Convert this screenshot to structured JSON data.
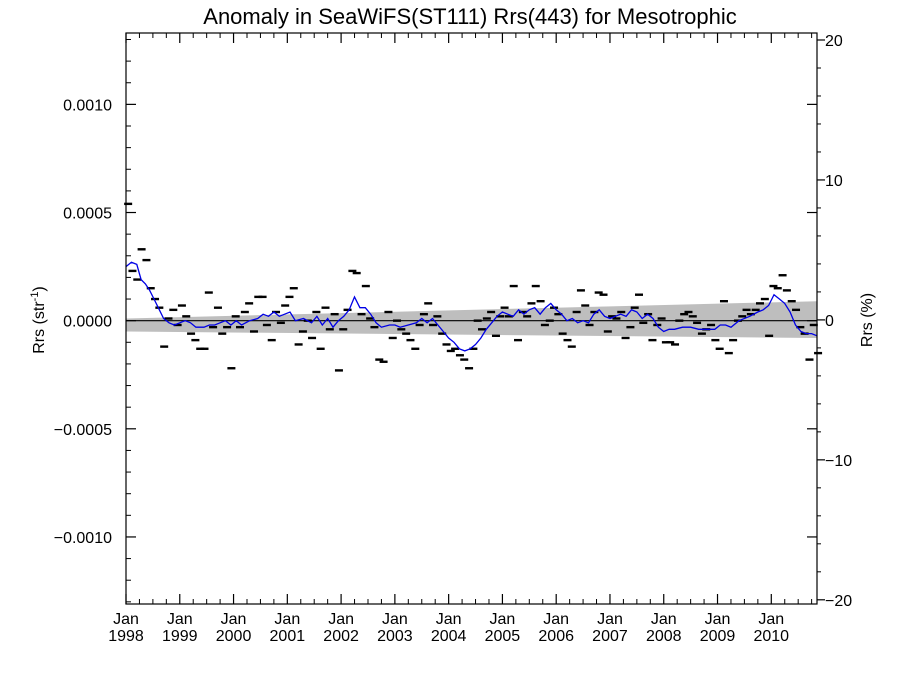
{
  "chart_data": {
    "type": "scatter",
    "title": "Anomaly in SeaWiFS(ST111) Rrs(443) for Mesotrophic",
    "ylabel_left": "Rrs (str",
    "ylabel_left_sup": "-1",
    "ylabel_left_end": ")",
    "ylabel_right": "Rrs (%)",
    "xlim": [
      1998.0,
      2010.85
    ],
    "ylim_left": [
      -0.00131,
      0.00133
    ],
    "ylim_right": [
      -20.3,
      20.5
    ],
    "y_ticks_left": [
      {
        "value": 0.001,
        "label": "0.0010"
      },
      {
        "value": 0.0005,
        "label": "0.0005"
      },
      {
        "value": 0.0,
        "label": "0.0000"
      },
      {
        "value": -0.0005,
        "label": "−0.0005"
      },
      {
        "value": -0.001,
        "label": "−0.0010"
      }
    ],
    "y_ticks_right": [
      {
        "value": 20,
        "label": "20"
      },
      {
        "value": 10,
        "label": "10"
      },
      {
        "value": 0,
        "label": "0"
      },
      {
        "value": -10,
        "label": "−10"
      },
      {
        "value": -20,
        "label": "−20"
      }
    ],
    "x_ticks": [
      {
        "value": 1998,
        "month": "Jan",
        "year": "1998"
      },
      {
        "value": 1999,
        "month": "Jan",
        "year": "1999"
      },
      {
        "value": 2000,
        "month": "Jan",
        "year": "2000"
      },
      {
        "value": 2001,
        "month": "Jan",
        "year": "2001"
      },
      {
        "value": 2002,
        "month": "Jan",
        "year": "2002"
      },
      {
        "value": 2003,
        "month": "Jan",
        "year": "2003"
      },
      {
        "value": 2004,
        "month": "Jan",
        "year": "2004"
      },
      {
        "value": 2005,
        "month": "Jan",
        "year": "2005"
      },
      {
        "value": 2006,
        "month": "Jan",
        "year": "2006"
      },
      {
        "value": 2007,
        "month": "Jan",
        "year": "2007"
      },
      {
        "value": 2008,
        "month": "Jan",
        "year": "2008"
      },
      {
        "value": 2009,
        "month": "Jan",
        "year": "2009"
      },
      {
        "value": 2010,
        "month": "Jan",
        "year": "2010"
      }
    ],
    "trend_band": {
      "x": [
        1998.0,
        2010.85
      ],
      "upper": [
        1e-05,
        9e-05
      ],
      "lower": [
        -5e-05,
        -8e-05
      ],
      "color": "#bebebe"
    },
    "zero_line": {
      "y": 0.0,
      "color": "#000000"
    },
    "monthly_anomalies": {
      "color": "#000000",
      "points": [
        [
          1998.04,
          0.00054
        ],
        [
          1998.12,
          0.00023
        ],
        [
          1998.21,
          0.00019
        ],
        [
          1998.29,
          0.00033
        ],
        [
          1998.38,
          0.00028
        ],
        [
          1998.46,
          0.00015
        ],
        [
          1998.54,
          0.0001
        ],
        [
          1998.62,
          6e-05
        ],
        [
          1998.71,
          -0.00012
        ],
        [
          1998.79,
          1e-05
        ],
        [
          1998.88,
          5e-05
        ],
        [
          1998.96,
          -2e-05
        ],
        [
          1999.04,
          7e-05
        ],
        [
          1999.12,
          2e-05
        ],
        [
          1999.21,
          -6e-05
        ],
        [
          1999.29,
          -9e-05
        ],
        [
          1999.38,
          -0.00013
        ],
        [
          1999.46,
          -0.00013
        ],
        [
          1999.54,
          0.00013
        ],
        [
          1999.62,
          -3e-05
        ],
        [
          1999.71,
          6e-05
        ],
        [
          1999.79,
          -6e-05
        ],
        [
          1999.88,
          -3e-05
        ],
        [
          1999.96,
          -0.00022
        ],
        [
          2000.04,
          2e-05
        ],
        [
          2000.12,
          -3e-05
        ],
        [
          2000.21,
          4e-05
        ],
        [
          2000.29,
          8e-05
        ],
        [
          2000.38,
          -5e-05
        ],
        [
          2000.46,
          0.00011
        ],
        [
          2000.54,
          0.00011
        ],
        [
          2000.62,
          -2e-05
        ],
        [
          2000.71,
          -9e-05
        ],
        [
          2000.79,
          4e-05
        ],
        [
          2000.88,
          -1e-05
        ],
        [
          2000.96,
          7e-05
        ],
        [
          2001.04,
          0.00011
        ],
        [
          2001.12,
          0.00015
        ],
        [
          2001.21,
          -0.00011
        ],
        [
          2001.29,
          -5e-05
        ],
        [
          2001.38,
          0.0
        ],
        [
          2001.46,
          -8e-05
        ],
        [
          2001.54,
          4e-05
        ],
        [
          2001.62,
          -0.00013
        ],
        [
          2001.71,
          6e-05
        ],
        [
          2001.79,
          -4e-05
        ],
        [
          2001.88,
          3e-05
        ],
        [
          2001.96,
          -0.00023
        ],
        [
          2002.04,
          -4e-05
        ],
        [
          2002.12,
          5e-05
        ],
        [
          2002.21,
          0.00023
        ],
        [
          2002.29,
          0.00022
        ],
        [
          2002.38,
          3e-05
        ],
        [
          2002.46,
          0.00016
        ],
        [
          2002.54,
          1e-05
        ],
        [
          2002.62,
          -3e-05
        ],
        [
          2002.71,
          -0.00018
        ],
        [
          2002.79,
          -0.00019
        ],
        [
          2002.88,
          4e-05
        ],
        [
          2002.96,
          -8e-05
        ],
        [
          2003.04,
          0.0
        ],
        [
          2003.12,
          -4e-05
        ],
        [
          2003.21,
          -6e-05
        ],
        [
          2003.29,
          -9e-05
        ],
        [
          2003.38,
          -0.00013
        ],
        [
          2003.46,
          -2e-05
        ],
        [
          2003.54,
          3e-05
        ],
        [
          2003.62,
          8e-05
        ],
        [
          2003.71,
          -2e-05
        ],
        [
          2003.79,
          2e-05
        ],
        [
          2003.88,
          -6e-05
        ],
        [
          2003.96,
          -0.00011
        ],
        [
          2004.04,
          -0.00014
        ],
        [
          2004.12,
          -0.00013
        ],
        [
          2004.21,
          -0.00016
        ],
        [
          2004.29,
          -0.00018
        ],
        [
          2004.38,
          -0.00022
        ],
        [
          2004.46,
          -0.00013
        ],
        [
          2004.54,
          0.0
        ],
        [
          2004.62,
          -4e-05
        ],
        [
          2004.71,
          1e-05
        ],
        [
          2004.79,
          4e-05
        ],
        [
          2004.88,
          -7e-05
        ],
        [
          2004.96,
          2e-05
        ],
        [
          2005.04,
          6e-05
        ],
        [
          2005.12,
          2e-05
        ],
        [
          2005.21,
          0.00016
        ],
        [
          2005.29,
          -9e-05
        ],
        [
          2005.38,
          4e-05
        ],
        [
          2005.46,
          2e-05
        ],
        [
          2005.54,
          8e-05
        ],
        [
          2005.62,
          0.00016
        ],
        [
          2005.71,
          9e-05
        ],
        [
          2005.79,
          -2e-05
        ],
        [
          2005.88,
          0.0
        ],
        [
          2005.96,
          6e-05
        ],
        [
          2006.04,
          3e-05
        ],
        [
          2006.12,
          -6e-05
        ],
        [
          2006.21,
          -9e-05
        ],
        [
          2006.29,
          -0.00012
        ],
        [
          2006.38,
          4e-05
        ],
        [
          2006.46,
          0.00014
        ],
        [
          2006.54,
          7e-05
        ],
        [
          2006.62,
          -2e-05
        ],
        [
          2006.71,
          4e-05
        ],
        [
          2006.79,
          0.00013
        ],
        [
          2006.88,
          0.00012
        ],
        [
          2006.96,
          -5e-05
        ],
        [
          2007.04,
          2e-05
        ],
        [
          2007.12,
          1e-05
        ],
        [
          2007.21,
          4e-05
        ],
        [
          2007.29,
          -8e-05
        ],
        [
          2007.38,
          -3e-05
        ],
        [
          2007.46,
          6e-05
        ],
        [
          2007.54,
          0.00012
        ],
        [
          2007.62,
          -1e-05
        ],
        [
          2007.71,
          3e-05
        ],
        [
          2007.79,
          -9e-05
        ],
        [
          2007.88,
          -2e-05
        ],
        [
          2007.96,
          1e-05
        ],
        [
          2008.04,
          -0.0001
        ],
        [
          2008.12,
          -0.0001
        ],
        [
          2008.21,
          -0.00011
        ],
        [
          2008.29,
          0.0
        ],
        [
          2008.38,
          3e-05
        ],
        [
          2008.46,
          4e-05
        ],
        [
          2008.54,
          2e-05
        ],
        [
          2008.62,
          -1e-05
        ],
        [
          2008.71,
          -6e-05
        ],
        [
          2008.79,
          -4e-05
        ],
        [
          2008.88,
          -2e-05
        ],
        [
          2008.96,
          -9e-05
        ],
        [
          2009.04,
          -0.00013
        ],
        [
          2009.12,
          9e-05
        ],
        [
          2009.21,
          -0.00015
        ],
        [
          2009.29,
          -9e-05
        ],
        [
          2009.38,
          0.0
        ],
        [
          2009.46,
          2e-05
        ],
        [
          2009.54,
          5e-05
        ],
        [
          2009.62,
          3e-05
        ],
        [
          2009.71,
          5e-05
        ],
        [
          2009.79,
          8e-05
        ],
        [
          2009.88,
          0.0001
        ],
        [
          2009.96,
          -7e-05
        ],
        [
          2010.04,
          0.00016
        ],
        [
          2010.12,
          0.00015
        ],
        [
          2010.21,
          0.00021
        ],
        [
          2010.29,
          0.00014
        ],
        [
          2010.38,
          9e-05
        ],
        [
          2010.46,
          5e-05
        ],
        [
          2010.54,
          -3e-05
        ],
        [
          2010.62,
          -6e-05
        ],
        [
          2010.71,
          -0.00018
        ],
        [
          2010.79,
          -2e-05
        ],
        [
          2010.87,
          -0.00015
        ]
      ]
    },
    "running_mean": {
      "color": "#0000e6",
      "points": [
        [
          1998.0,
          0.00025
        ],
        [
          1998.1,
          0.00027
        ],
        [
          1998.2,
          0.00026
        ],
        [
          1998.28,
          0.00019
        ],
        [
          1998.36,
          0.00017
        ],
        [
          1998.44,
          0.00014
        ],
        [
          1998.52,
          0.0001
        ],
        [
          1998.6,
          6e-05
        ],
        [
          1998.7,
          1e-05
        ],
        [
          1998.8,
          -1e-05
        ],
        [
          1998.9,
          -2e-05
        ],
        [
          1999.0,
          -1e-05
        ],
        [
          1999.1,
          0.0
        ],
        [
          1999.2,
          -1e-05
        ],
        [
          1999.3,
          -3e-05
        ],
        [
          1999.45,
          -3e-05
        ],
        [
          1999.55,
          -2e-05
        ],
        [
          1999.65,
          -2e-05
        ],
        [
          1999.75,
          -1e-05
        ],
        [
          1999.85,
          0.0
        ],
        [
          1999.95,
          -2e-05
        ],
        [
          2000.05,
          0.0
        ],
        [
          2000.15,
          -2e-05
        ],
        [
          2000.3,
          0.0
        ],
        [
          2000.45,
          1e-05
        ],
        [
          2000.55,
          3e-05
        ],
        [
          2000.65,
          2e-05
        ],
        [
          2000.75,
          4e-05
        ],
        [
          2000.85,
          2e-05
        ],
        [
          2000.95,
          3e-05
        ],
        [
          2001.05,
          4e-05
        ],
        [
          2001.15,
          0.0
        ],
        [
          2001.3,
          1e-05
        ],
        [
          2001.45,
          -1e-05
        ],
        [
          2001.55,
          2e-05
        ],
        [
          2001.65,
          -2e-05
        ],
        [
          2001.75,
          1e-05
        ],
        [
          2001.85,
          -3e-05
        ],
        [
          2001.95,
          0.0
        ],
        [
          2002.05,
          2e-05
        ],
        [
          2002.15,
          5e-05
        ],
        [
          2002.25,
          0.00011
        ],
        [
          2002.35,
          6e-05
        ],
        [
          2002.45,
          6e-05
        ],
        [
          2002.55,
          3e-05
        ],
        [
          2002.65,
          -1e-05
        ],
        [
          2002.75,
          -3e-05
        ],
        [
          2002.9,
          -2e-05
        ],
        [
          2003.0,
          -2e-05
        ],
        [
          2003.1,
          -3e-05
        ],
        [
          2003.25,
          -2e-05
        ],
        [
          2003.4,
          -1e-05
        ],
        [
          2003.5,
          1e-05
        ],
        [
          2003.6,
          -1e-05
        ],
        [
          2003.7,
          1e-05
        ],
        [
          2003.8,
          -2e-05
        ],
        [
          2003.9,
          -5e-05
        ],
        [
          2004.0,
          -8e-05
        ],
        [
          2004.1,
          -0.0001
        ],
        [
          2004.2,
          -0.00013
        ],
        [
          2004.3,
          -0.00014
        ],
        [
          2004.4,
          -0.00013
        ],
        [
          2004.5,
          -0.00011
        ],
        [
          2004.6,
          -8e-05
        ],
        [
          2004.7,
          -4e-05
        ],
        [
          2004.8,
          -1e-05
        ],
        [
          2004.9,
          2e-05
        ],
        [
          2005.0,
          4e-05
        ],
        [
          2005.1,
          3e-05
        ],
        [
          2005.2,
          2e-05
        ],
        [
          2005.3,
          5e-05
        ],
        [
          2005.4,
          3e-05
        ],
        [
          2005.5,
          5e-05
        ],
        [
          2005.6,
          6e-05
        ],
        [
          2005.7,
          3e-05
        ],
        [
          2005.8,
          6e-05
        ],
        [
          2005.9,
          8e-05
        ],
        [
          2006.0,
          5e-05
        ],
        [
          2006.1,
          3e-05
        ],
        [
          2006.2,
          0.0
        ],
        [
          2006.3,
          1e-05
        ],
        [
          2006.4,
          -1e-05
        ],
        [
          2006.5,
          0.0
        ],
        [
          2006.6,
          -1e-05
        ],
        [
          2006.7,
          3e-05
        ],
        [
          2006.8,
          5e-05
        ],
        [
          2006.9,
          2e-05
        ],
        [
          2007.0,
          1e-05
        ],
        [
          2007.1,
          2e-05
        ],
        [
          2007.2,
          3e-05
        ],
        [
          2007.3,
          2e-05
        ],
        [
          2007.4,
          5e-05
        ],
        [
          2007.5,
          4e-05
        ],
        [
          2007.6,
          1e-05
        ],
        [
          2007.7,
          3e-05
        ],
        [
          2007.8,
          1e-05
        ],
        [
          2007.9,
          -3e-05
        ],
        [
          2008.0,
          -5e-05
        ],
        [
          2008.1,
          -4e-05
        ],
        [
          2008.2,
          -4e-05
        ],
        [
          2008.35,
          -3e-05
        ],
        [
          2008.5,
          -3e-05
        ],
        [
          2008.65,
          -4e-05
        ],
        [
          2008.8,
          -4e-05
        ],
        [
          2008.95,
          -4e-05
        ],
        [
          2009.05,
          -2e-05
        ],
        [
          2009.15,
          -2e-05
        ],
        [
          2009.25,
          -3e-05
        ],
        [
          2009.4,
          0.0
        ],
        [
          2009.6,
          2e-05
        ],
        [
          2009.75,
          4e-05
        ],
        [
          2009.85,
          5e-05
        ],
        [
          2009.95,
          7e-05
        ],
        [
          2010.05,
          0.00012
        ],
        [
          2010.15,
          0.0001
        ],
        [
          2010.25,
          8e-05
        ],
        [
          2010.35,
          4e-05
        ],
        [
          2010.45,
          -2e-05
        ],
        [
          2010.55,
          -5e-05
        ],
        [
          2010.65,
          -6e-05
        ],
        [
          2010.75,
          -6e-05
        ],
        [
          2010.85,
          -7e-05
        ]
      ]
    }
  }
}
